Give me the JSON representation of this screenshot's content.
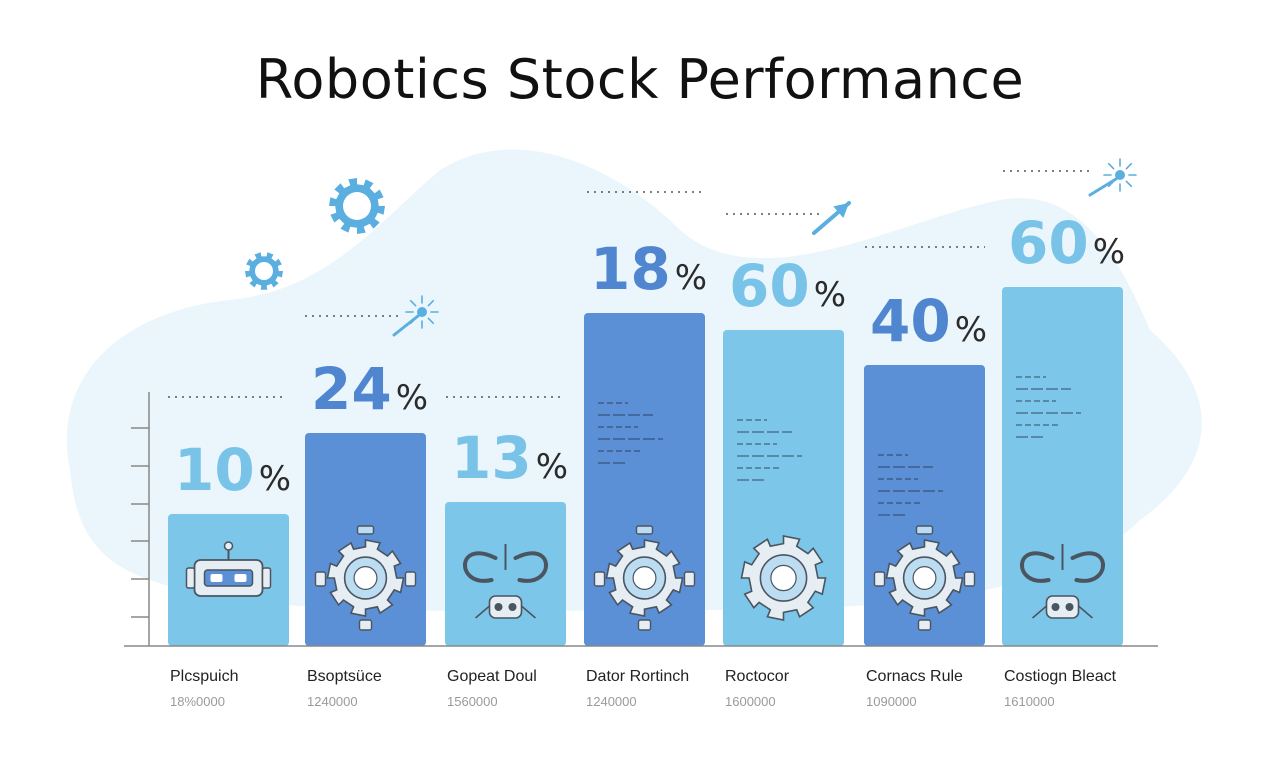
{
  "title": "Robotics Stock Performance",
  "colors": {
    "bar_dark": "#5b8fd6",
    "bar_light": "#7cc6ea",
    "text_dark_num": "#4f86cf",
    "text_light_num": "#79c3e8",
    "blob": "#eaf6fb",
    "icon_fill": "#e6edf3",
    "icon_stroke": "#4a5560",
    "gear_blue": "#5aaee0"
  },
  "chart_data": {
    "type": "bar",
    "title": "Robotics Stock Performance",
    "categories": [
      "Plcspuich",
      "Bsoptsüce",
      "Gopeat Doul",
      "Dator Rortinch",
      "Roctocor",
      "Cornacs Rule",
      "Costiogn Bleact"
    ],
    "subvalues": [
      "18%0000",
      "1240000",
      "1560000",
      "1240000",
      "1600000",
      "1090000",
      "1610000"
    ],
    "value_labels": [
      "10",
      "24",
      "13",
      "18",
      "60",
      "40",
      "60"
    ],
    "percent_sign": "%",
    "values": [
      10,
      24,
      13,
      18,
      60,
      40,
      60
    ],
    "bar_styles": [
      "light",
      "dark",
      "light",
      "dark",
      "light",
      "dark",
      "light"
    ],
    "icons": [
      "robot-head-icon",
      "gear-robot-icon",
      "robot-claw-icon",
      "gear-robot-icon",
      "gear-icon",
      "gear-robot-icon",
      "robot-claw-icon"
    ],
    "xlabel": "",
    "ylabel": ""
  }
}
